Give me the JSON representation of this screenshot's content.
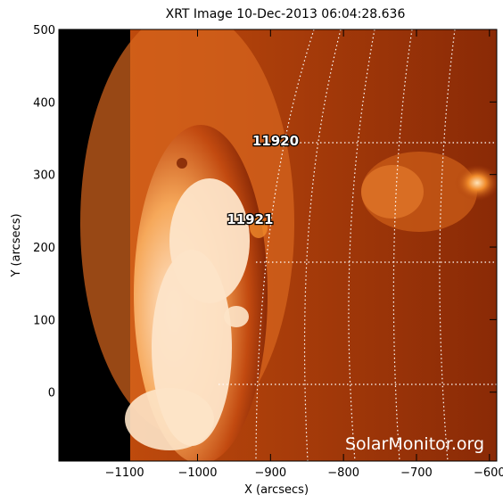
{
  "title": "XRT Image 10-Dec-2013 06:04:28.636",
  "x_axis": {
    "label": "X (arcsecs)",
    "range": [
      -1190,
      -590
    ],
    "ticks": [
      -1100,
      -1000,
      -900,
      -800,
      -700,
      -600
    ],
    "tick_labels": [
      "−1100",
      "−1000",
      "−900",
      "−800",
      "−700",
      "−600"
    ]
  },
  "y_axis": {
    "label": "Y (arcsecs)",
    "range": [
      -95,
      500
    ],
    "ticks": [
      0,
      100,
      200,
      300,
      400,
      500
    ],
    "tick_labels": [
      "0",
      "100",
      "200",
      "300",
      "400",
      "500"
    ]
  },
  "active_regions": [
    {
      "number": "11920",
      "x": -925,
      "y": 340
    },
    {
      "number": "11921",
      "x": -960,
      "y": 232
    }
  ],
  "watermark": "SolarMonitor.org",
  "colors": {
    "background_disk": "#8a2a06",
    "off_limb_black": "#000000",
    "bright_emission": "#fde4c8",
    "grid_lines": "#ffffff"
  }
}
